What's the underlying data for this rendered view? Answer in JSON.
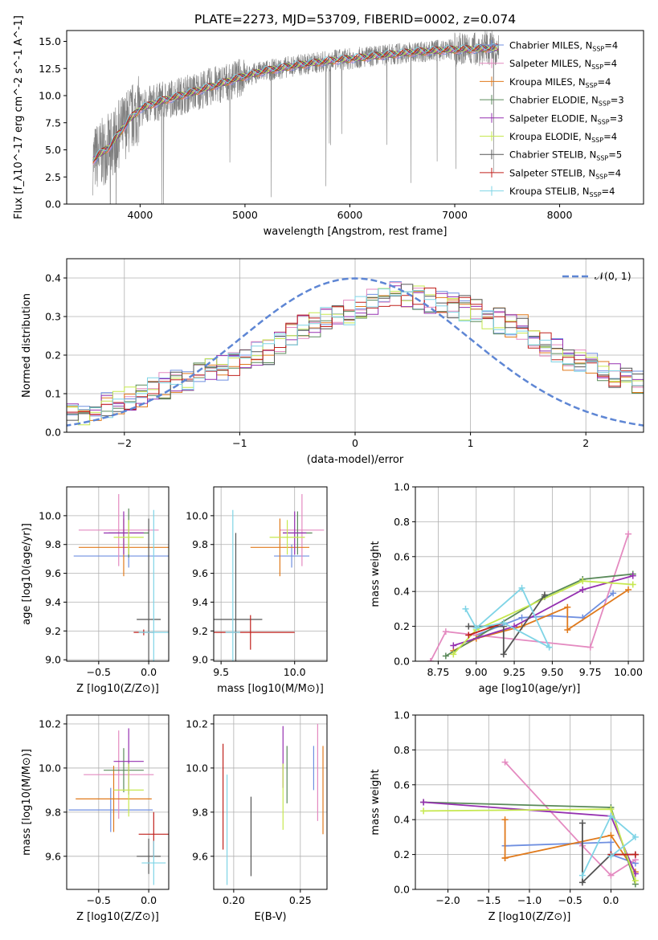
{
  "figure": {
    "title": "PLATE=2273, MJD=53709, FIBERID=0002, z=0.074"
  },
  "colors": {
    "Chabrier MILES": "#6f8fe0",
    "Salpeter MILES": "#e48ac0",
    "Kroupa MILES": "#e07a1c",
    "Chabrier ELODIE": "#5a8a5a",
    "Salpeter ELODIE": "#9530b0",
    "Kroupa ELODIE": "#c6e84f",
    "Chabrier STELIB": "#555555",
    "Salpeter STELIB": "#c0201c",
    "Kroupa STELIB": "#7fd4e6",
    "data": "#808080",
    "normal": "#5e86d4"
  },
  "chart_data": [
    {
      "id": "spectrum",
      "type": "line",
      "xlabel": "wavelength [Angstrom, rest frame]",
      "ylabel": "Flux [f_λ10^-17 erg cm^-2 s^-1 A^-1]",
      "xlim": [
        3300,
        8800
      ],
      "ylim": [
        0,
        16
      ],
      "xticks": [
        "4000",
        "5000",
        "6000",
        "7000",
        "8000"
      ],
      "yticks": [
        "0.0",
        "2.5",
        "5.0",
        "7.5",
        "10.0",
        "12.5",
        "15.0"
      ],
      "model_curve": {
        "x": [
          3550,
          3600,
          3700,
          3800,
          3900,
          4000,
          4200,
          4500,
          4800,
          5000,
          5200,
          5500,
          5800,
          6000,
          6300,
          6600,
          6900,
          7200,
          7400
        ],
        "y": [
          4.0,
          4.5,
          5.2,
          6.5,
          7.8,
          8.8,
          9.5,
          10.3,
          11.2,
          11.8,
          12.3,
          12.8,
          13.2,
          13.4,
          13.7,
          14.0,
          14.2,
          14.3,
          14.4
        ]
      },
      "legend": [
        {
          "name": "Chabrier MILES",
          "nssp": "4"
        },
        {
          "name": "Salpeter MILES",
          "nssp": "4"
        },
        {
          "name": "Kroupa MILES",
          "nssp": "4"
        },
        {
          "name": "Chabrier ELODIE",
          "nssp": "3"
        },
        {
          "name": "Salpeter ELODIE",
          "nssp": "3"
        },
        {
          "name": "Kroupa ELODIE",
          "nssp": "4"
        },
        {
          "name": "Chabrier STELIB",
          "nssp": "5"
        },
        {
          "name": "Salpeter STELIB",
          "nssp": "4"
        },
        {
          "name": "Kroupa STELIB",
          "nssp": "4"
        }
      ]
    },
    {
      "id": "residuals",
      "type": "line",
      "xlabel": "(data-model)/error",
      "ylabel": "Normed distribution",
      "xlim": [
        -2.5,
        2.5
      ],
      "ylim": [
        0,
        0.45
      ],
      "xticks": [
        "−2",
        "−1",
        "0",
        "1",
        "2"
      ],
      "yticks": [
        "0.0",
        "0.1",
        "0.2",
        "0.3",
        "0.4"
      ],
      "legend": "𝒩(0, 1)",
      "bin_width": 0.1,
      "histogram_base": [
        0.04,
        0.05,
        0.06,
        0.07,
        0.08,
        0.09,
        0.1,
        0.11,
        0.12,
        0.13,
        0.14,
        0.15,
        0.16,
        0.17,
        0.18,
        0.19,
        0.2,
        0.21,
        0.23,
        0.25,
        0.27,
        0.28,
        0.29,
        0.3,
        0.31,
        0.33,
        0.34,
        0.35,
        0.36,
        0.36,
        0.35,
        0.34,
        0.33,
        0.33,
        0.32,
        0.31,
        0.3,
        0.29,
        0.28,
        0.27,
        0.25,
        0.23,
        0.21,
        0.19,
        0.18,
        0.17,
        0.16,
        0.15,
        0.14,
        0.13,
        0.12,
        0.11,
        0.1,
        0.09,
        0.08,
        0.07,
        0.06,
        0.05,
        0.05,
        0.04
      ]
    },
    {
      "id": "age-vs-Z",
      "type": "scatter",
      "xlabel": "Z [log10(Z/Z⊙)]",
      "ylabel": "age  [log10(age/yr)]",
      "xlim": [
        -0.82,
        0.2
      ],
      "ylim": [
        8.99,
        10.2
      ],
      "xticks": [
        "−0.5",
        "0.0"
      ],
      "yticks": [
        "9.0",
        "9.2",
        "9.4",
        "9.6",
        "9.8",
        "10.0"
      ],
      "xtick_values": [
        -0.5,
        0.0
      ],
      "ytick_values": [
        9.0,
        9.2,
        9.4,
        9.6,
        9.8,
        10.0
      ],
      "crosses": [
        {
          "model": "Chabrier MILES",
          "x": -0.2,
          "xerr": 0.55,
          "y": 9.72,
          "yerr": 0.08
        },
        {
          "model": "Salpeter MILES",
          "x": -0.3,
          "xerr": 0.4,
          "y": 9.9,
          "yerr": 0.25
        },
        {
          "model": "Kroupa MILES",
          "x": -0.25,
          "xerr": 0.45,
          "y": 9.78,
          "yerr": 0.2
        },
        {
          "model": "Chabrier ELODIE",
          "x": -0.2,
          "xerr": 0.2,
          "y": 9.88,
          "yerr": 0.17
        },
        {
          "model": "Salpeter ELODIE",
          "x": -0.25,
          "xerr": 0.2,
          "y": 9.88,
          "yerr": 0.15
        },
        {
          "model": "Kroupa ELODIE",
          "x": -0.2,
          "xerr": 0.15,
          "y": 9.85,
          "yerr": 0.12
        },
        {
          "model": "Chabrier STELIB",
          "x": 0.0,
          "xerr": 0.12,
          "y": 9.28,
          "yerr": 0.7
        },
        {
          "model": "Salpeter STELIB",
          "x": -0.05,
          "xerr": 0.1,
          "y": 9.19,
          "yerr": 0.02
        },
        {
          "model": "Kroupa STELIB",
          "x": 0.05,
          "xerr": 0.15,
          "y": 9.19,
          "yerr": 0.85
        }
      ]
    },
    {
      "id": "age-vs-mass",
      "type": "scatter",
      "xlabel": "mass [log10(M/M⊙)]",
      "ylabel": "",
      "xlim": [
        9.45,
        10.22
      ],
      "ylim": [
        8.99,
        10.2
      ],
      "xticks": [
        "9.5",
        "10.0"
      ],
      "yticks": [
        "9.0",
        "9.2",
        "9.4",
        "9.6",
        "9.8",
        "10.0"
      ],
      "xtick_values": [
        9.5,
        10.0
      ],
      "ytick_values": [
        9.0,
        9.2,
        9.4,
        9.6,
        9.8,
        10.0
      ],
      "crosses": [
        {
          "model": "Chabrier MILES",
          "x": 9.98,
          "xerr": 0.12,
          "y": 9.72,
          "yerr": 0.08
        },
        {
          "model": "Salpeter MILES",
          "x": 10.05,
          "xerr": 0.15,
          "y": 9.9,
          "yerr": 0.25
        },
        {
          "model": "Kroupa MILES",
          "x": 9.9,
          "xerr": 0.2,
          "y": 9.78,
          "yerr": 0.2
        },
        {
          "model": "Chabrier ELODIE",
          "x": 10.02,
          "xerr": 0.1,
          "y": 9.88,
          "yerr": 0.15
        },
        {
          "model": "Salpeter ELODIE",
          "x": 10.0,
          "xerr": 0.08,
          "y": 9.88,
          "yerr": 0.15
        },
        {
          "model": "Kroupa ELODIE",
          "x": 9.95,
          "xerr": 0.12,
          "y": 9.85,
          "yerr": 0.12
        },
        {
          "model": "Chabrier STELIB",
          "x": 9.6,
          "xerr": 0.18,
          "y": 9.28,
          "yerr": 0.6
        },
        {
          "model": "Salpeter STELIB",
          "x": 9.7,
          "xerr": 0.3,
          "y": 9.19,
          "yerr": 0.12
        },
        {
          "model": "Kroupa STELIB",
          "x": 9.58,
          "xerr": 0.05,
          "y": 9.19,
          "yerr": 0.85
        }
      ]
    },
    {
      "id": "mass-weight-vs-age",
      "type": "line",
      "xlabel": "age  [log10(age/yr)]",
      "ylabel": "mass weight",
      "xlim": [
        8.6,
        10.1
      ],
      "ylim": [
        0,
        1
      ],
      "xticks": [
        "8.75",
        "9.00",
        "9.25",
        "9.50",
        "9.75",
        "10.00"
      ],
      "yticks": [
        "0.0",
        "0.2",
        "0.4",
        "0.6",
        "0.8",
        "1.0"
      ],
      "xtick_values": [
        8.75,
        9.0,
        9.25,
        9.5,
        9.75,
        10.0
      ],
      "ytick_values": [
        0.0,
        0.2,
        0.4,
        0.6,
        0.8,
        1.0
      ],
      "series": [
        {
          "name": "Chabrier MILES",
          "x": [
            9.0,
            9.3,
            9.5,
            9.7,
            9.9
          ],
          "y": [
            0.15,
            0.25,
            0.26,
            0.25,
            0.39
          ]
        },
        {
          "name": "Salpeter MILES",
          "x": [
            8.7,
            8.8,
            9.0,
            9.75,
            10.0
          ],
          "y": [
            0.0,
            0.17,
            0.15,
            0.08,
            0.73
          ]
        },
        {
          "name": "Kroupa MILES",
          "x": [
            8.85,
            9.0,
            9.3,
            9.6,
            9.6,
            10.0
          ],
          "y": [
            0.06,
            0.13,
            0.2,
            0.31,
            0.18,
            0.41
          ]
        },
        {
          "name": "Chabrier ELODIE",
          "x": [
            8.8,
            9.45,
            9.7,
            10.03
          ],
          "y": [
            0.03,
            0.37,
            0.47,
            0.5
          ]
        },
        {
          "name": "Salpeter ELODIE",
          "x": [
            8.85,
            9.25,
            9.7,
            10.03
          ],
          "y": [
            0.09,
            0.2,
            0.41,
            0.49
          ]
        },
        {
          "name": "Kroupa ELODIE",
          "x": [
            8.85,
            9.0,
            9.7,
            10.03
          ],
          "y": [
            0.04,
            0.18,
            0.46,
            0.44
          ]
        },
        {
          "name": "Chabrier STELIB",
          "x": [
            8.95,
            9.18,
            9.18,
            9.45
          ],
          "y": [
            0.2,
            0.2,
            0.04,
            0.38
          ]
        },
        {
          "name": "Salpeter STELIB",
          "x": [
            8.95,
            9.18
          ],
          "y": [
            0.15,
            0.22
          ]
        },
        {
          "name": "Kroupa STELIB",
          "x": [
            8.93,
            9.0,
            9.3,
            9.48,
            9.18,
            9.0
          ],
          "y": [
            0.3,
            0.19,
            0.42,
            0.08,
            0.22,
            0.19
          ]
        }
      ]
    },
    {
      "id": "mass-vs-Z",
      "type": "scatter",
      "xlabel": "Z [log10(Z/Z⊙)]",
      "ylabel": "mass [log10(M/M⊙)]",
      "xlim": [
        -0.82,
        0.2
      ],
      "ylim": [
        9.45,
        10.24
      ],
      "xticks": [
        "−0.5",
        "0.0"
      ],
      "yticks": [
        "9.6",
        "9.8",
        "10.0",
        "10.2"
      ],
      "xtick_values": [
        -0.5,
        0.0
      ],
      "ytick_values": [
        9.6,
        9.8,
        10.0,
        10.2
      ],
      "crosses": [
        {
          "model": "Chabrier MILES",
          "x": -0.38,
          "xerr": 0.42,
          "y": 9.81,
          "yerr": 0.1
        },
        {
          "model": "Salpeter MILES",
          "x": -0.3,
          "xerr": 0.35,
          "y": 9.97,
          "yerr": 0.2
        },
        {
          "model": "Kroupa MILES",
          "x": -0.35,
          "xerr": 0.38,
          "y": 9.86,
          "yerr": 0.15
        },
        {
          "model": "Chabrier ELODIE",
          "x": -0.25,
          "xerr": 0.2,
          "y": 9.99,
          "yerr": 0.1
        },
        {
          "model": "Salpeter ELODIE",
          "x": -0.2,
          "xerr": 0.15,
          "y": 10.03,
          "yerr": 0.15
        },
        {
          "model": "Kroupa ELODIE",
          "x": -0.2,
          "xerr": 0.15,
          "y": 9.9,
          "yerr": 0.12
        },
        {
          "model": "Chabrier STELIB",
          "x": 0.0,
          "xerr": 0.12,
          "y": 9.6,
          "yerr": 0.08
        },
        {
          "model": "Salpeter STELIB",
          "x": 0.05,
          "xerr": 0.15,
          "y": 9.7,
          "yerr": 0.1
        },
        {
          "model": "Kroupa STELIB",
          "x": 0.05,
          "xerr": 0.12,
          "y": 9.57,
          "yerr": 0.1
        }
      ]
    },
    {
      "id": "mass-vs-EBV",
      "type": "scatter",
      "xlabel": "E(B-V)",
      "ylabel": "",
      "xlim": [
        0.185,
        0.27
      ],
      "ylim": [
        9.45,
        10.24
      ],
      "xticks": [
        "0.20",
        "0.25"
      ],
      "yticks": [
        "9.6",
        "9.8",
        "10.0",
        "10.2"
      ],
      "xtick_values": [
        0.2,
        0.25
      ],
      "ytick_values": [
        9.6,
        9.8,
        10.0,
        10.2
      ],
      "crosses": [
        {
          "model": "Salpeter STELIB",
          "x": 0.192,
          "xerr": 0.0,
          "y": 9.87,
          "yerr": 0.24
        },
        {
          "model": "Kroupa STELIB",
          "x": 0.195,
          "xerr": 0.0,
          "y": 9.72,
          "yerr": 0.25
        },
        {
          "model": "Chabrier STELIB",
          "x": 0.213,
          "xerr": 0.0,
          "y": 9.69,
          "yerr": 0.18
        },
        {
          "model": "Salpeter ELODIE",
          "x": 0.237,
          "xerr": 0.0,
          "y": 10.05,
          "yerr": 0.14
        },
        {
          "model": "Kroupa ELODIE",
          "x": 0.237,
          "xerr": 0.0,
          "y": 9.87,
          "yerr": 0.15
        },
        {
          "model": "Chabrier ELODIE",
          "x": 0.24,
          "xerr": 0.0,
          "y": 9.97,
          "yerr": 0.13
        },
        {
          "model": "Salpeter MILES",
          "x": 0.263,
          "xerr": 0.0,
          "y": 9.98,
          "yerr": 0.22
        },
        {
          "model": "Kroupa MILES",
          "x": 0.267,
          "xerr": 0.0,
          "y": 9.9,
          "yerr": 0.2
        },
        {
          "model": "Chabrier MILES",
          "x": 0.26,
          "xerr": 0.0,
          "y": 10.0,
          "yerr": 0.1
        }
      ]
    },
    {
      "id": "mass-weight-vs-Z",
      "type": "line",
      "xlabel": "Z [log10(Z/Z⊙)]",
      "ylabel": "mass weight",
      "xlim": [
        -2.4,
        0.4
      ],
      "ylim": [
        0,
        1
      ],
      "xticks": [
        "−2.0",
        "−1.5",
        "−1.0",
        "−0.5",
        "0.0"
      ],
      "yticks": [
        "0.0",
        "0.2",
        "0.4",
        "0.6",
        "0.8",
        "1.0"
      ],
      "xtick_values": [
        -2.0,
        -1.5,
        -1.0,
        -0.5,
        0.0
      ],
      "ytick_values": [
        0.0,
        0.2,
        0.4,
        0.6,
        0.8,
        1.0
      ],
      "series": [
        {
          "name": "Chabrier MILES",
          "x": [
            -1.3,
            0.0,
            0.0,
            0.3
          ],
          "y": [
            0.25,
            0.27,
            0.2,
            0.15
          ]
        },
        {
          "name": "Salpeter MILES",
          "x": [
            -1.3,
            -0.35,
            0.0,
            0.3
          ],
          "y": [
            0.73,
            0.25,
            0.08,
            0.17
          ]
        },
        {
          "name": "Kroupa MILES",
          "x": [
            -1.3,
            -1.3,
            -1.3,
            0.0,
            0.3
          ],
          "y": [
            0.4,
            0.18,
            0.18,
            0.31,
            0.1
          ]
        },
        {
          "name": "Chabrier ELODIE",
          "x": [
            -2.3,
            0.0,
            0.3
          ],
          "y": [
            0.5,
            0.47,
            0.03
          ]
        },
        {
          "name": "Salpeter ELODIE",
          "x": [
            -2.3,
            0.0,
            0.3
          ],
          "y": [
            0.5,
            0.42,
            0.09
          ]
        },
        {
          "name": "Kroupa ELODIE",
          "x": [
            -2.3,
            0.0,
            0.3
          ],
          "y": [
            0.45,
            0.46,
            0.05
          ]
        },
        {
          "name": "Chabrier STELIB",
          "x": [
            -0.35,
            -0.35,
            0.0,
            0.3
          ],
          "y": [
            0.38,
            0.04,
            0.2,
            0.2
          ]
        },
        {
          "name": "Salpeter STELIB",
          "x": [
            0.0,
            0.3
          ],
          "y": [
            0.2,
            0.2
          ]
        },
        {
          "name": "Kroupa STELIB",
          "x": [
            -0.35,
            0.0,
            0.3,
            0.0
          ],
          "y": [
            0.08,
            0.42,
            0.3,
            0.19
          ]
        }
      ]
    }
  ]
}
